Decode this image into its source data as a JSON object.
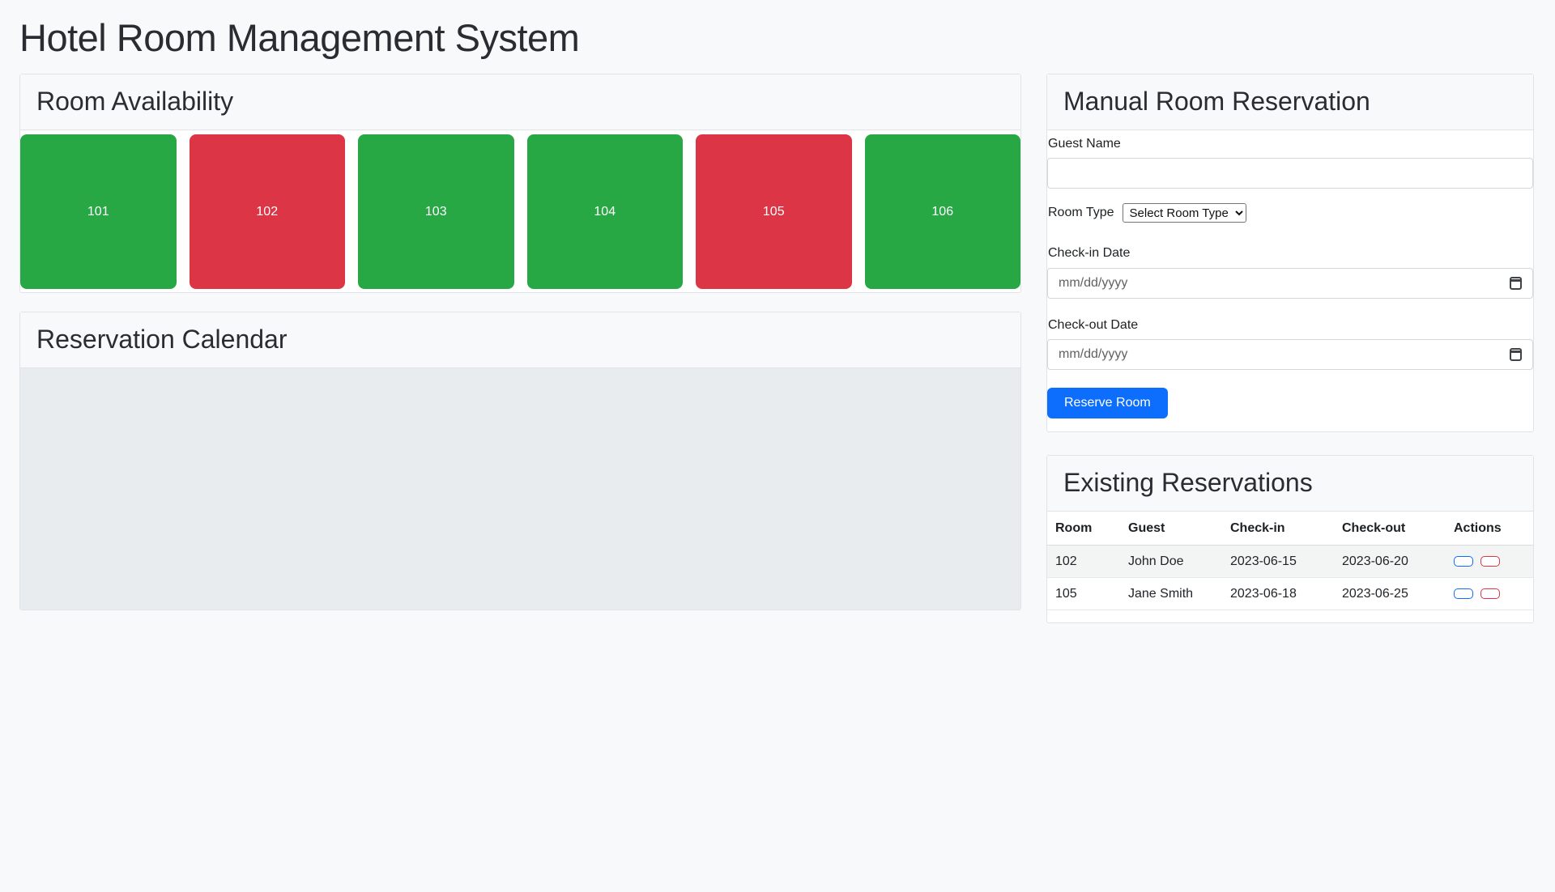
{
  "page": {
    "title": "Hotel Room Management System"
  },
  "room_availability": {
    "title": "Room Availability",
    "rooms": [
      {
        "number": "101",
        "status": "available"
      },
      {
        "number": "102",
        "status": "occupied"
      },
      {
        "number": "103",
        "status": "available"
      },
      {
        "number": "104",
        "status": "available"
      },
      {
        "number": "105",
        "status": "occupied"
      },
      {
        "number": "106",
        "status": "available"
      }
    ],
    "status_colors": {
      "available": "#28a745",
      "occupied": "#dc3545"
    }
  },
  "reservation_calendar": {
    "title": "Reservation Calendar"
  },
  "reservation_form": {
    "title": "Manual Room Reservation",
    "guest_name_label": "Guest Name",
    "guest_name_value": "",
    "room_type_label": "Room Type",
    "room_type_selected": "Select Room Type",
    "check_in_label": "Check-in Date",
    "check_out_label": "Check-out Date",
    "date_placeholder": "mm/dd/yyyy",
    "submit_label": "Reserve Room",
    "submit_color": "#0d6efd"
  },
  "existing_reservations": {
    "title": "Existing Reservations",
    "columns": [
      "Room",
      "Guest",
      "Check-in",
      "Check-out",
      "Actions"
    ],
    "rows": [
      {
        "room": "102",
        "guest": "John Doe",
        "check_in": "2023-06-15",
        "check_out": "2023-06-20"
      },
      {
        "room": "105",
        "guest": "Jane Smith",
        "check_in": "2023-06-18",
        "check_out": "2023-06-25"
      }
    ],
    "action_colors": {
      "primary": "#0d6efd",
      "danger": "#dc3545"
    }
  }
}
